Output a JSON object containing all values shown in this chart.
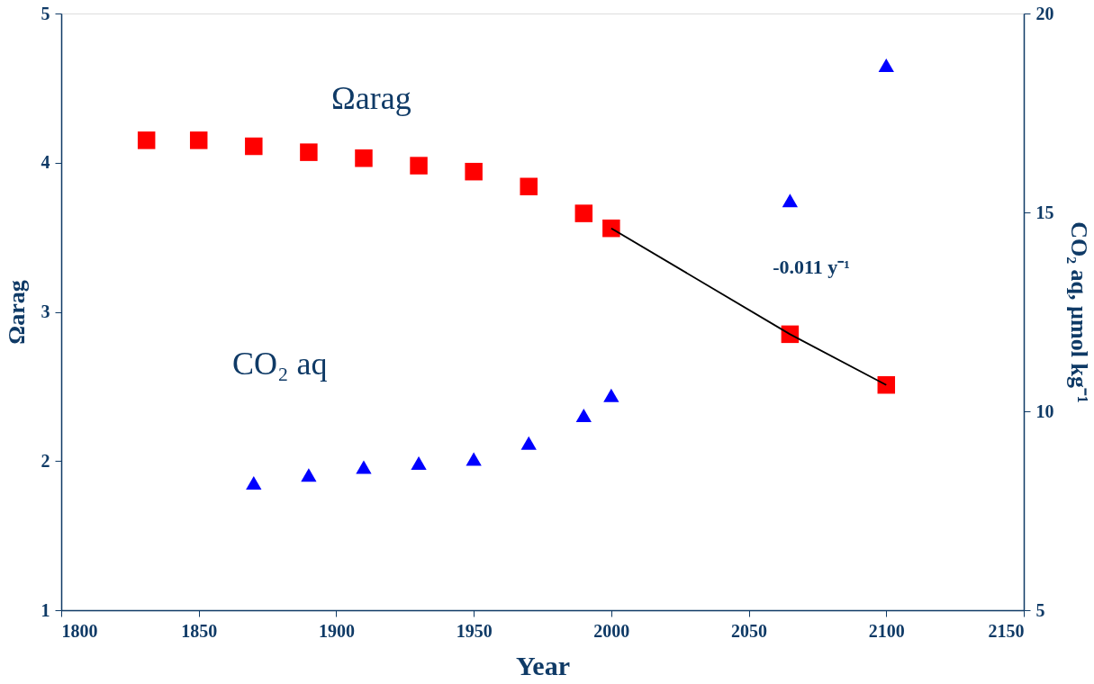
{
  "chart_data": {
    "type": "scatter",
    "xlabel": "Year",
    "ylabel": "Ωarag",
    "y2label": "CO₂ aq, µmol kg⁻¹",
    "xlim": [
      1800,
      2150
    ],
    "xticks": [
      1800,
      1850,
      1900,
      1950,
      2000,
      2050,
      2100,
      2150
    ],
    "ylim": [
      1,
      5
    ],
    "yticks": [
      1,
      2,
      3,
      4,
      5
    ],
    "y2lim": [
      5,
      20
    ],
    "y2ticks": [
      5,
      10,
      15,
      20
    ],
    "grid": false,
    "series": [
      {
        "name": "Ωarag",
        "color": "#ff0000",
        "marker": "square",
        "x": [
          1831,
          1850,
          1870,
          1890,
          1910,
          1930,
          1950,
          1970,
          1990,
          2000,
          2065,
          2100
        ],
        "values": [
          4.15,
          4.15,
          4.11,
          4.07,
          4.03,
          3.98,
          3.94,
          3.84,
          3.66,
          3.56,
          2.85,
          2.51
        ]
      },
      {
        "name": "CO₂ aq",
        "color": "#0000ff",
        "marker": "triangle",
        "axis": "y2",
        "x": [
          1870,
          1890,
          1910,
          1930,
          1950,
          1970,
          1990,
          2000,
          2065,
          2100
        ],
        "values": [
          8.2,
          8.4,
          8.6,
          8.7,
          8.8,
          9.2,
          9.9,
          10.4,
          15.3,
          18.7
        ]
      },
      {
        "type": "line",
        "color": "#000000",
        "line_style": "solid",
        "x": [
          2000,
          2065,
          2100
        ],
        "values": [
          3.56,
          2.85,
          2.51
        ]
      }
    ],
    "annotations": [
      "-0.011 y⁻¹"
    ]
  }
}
